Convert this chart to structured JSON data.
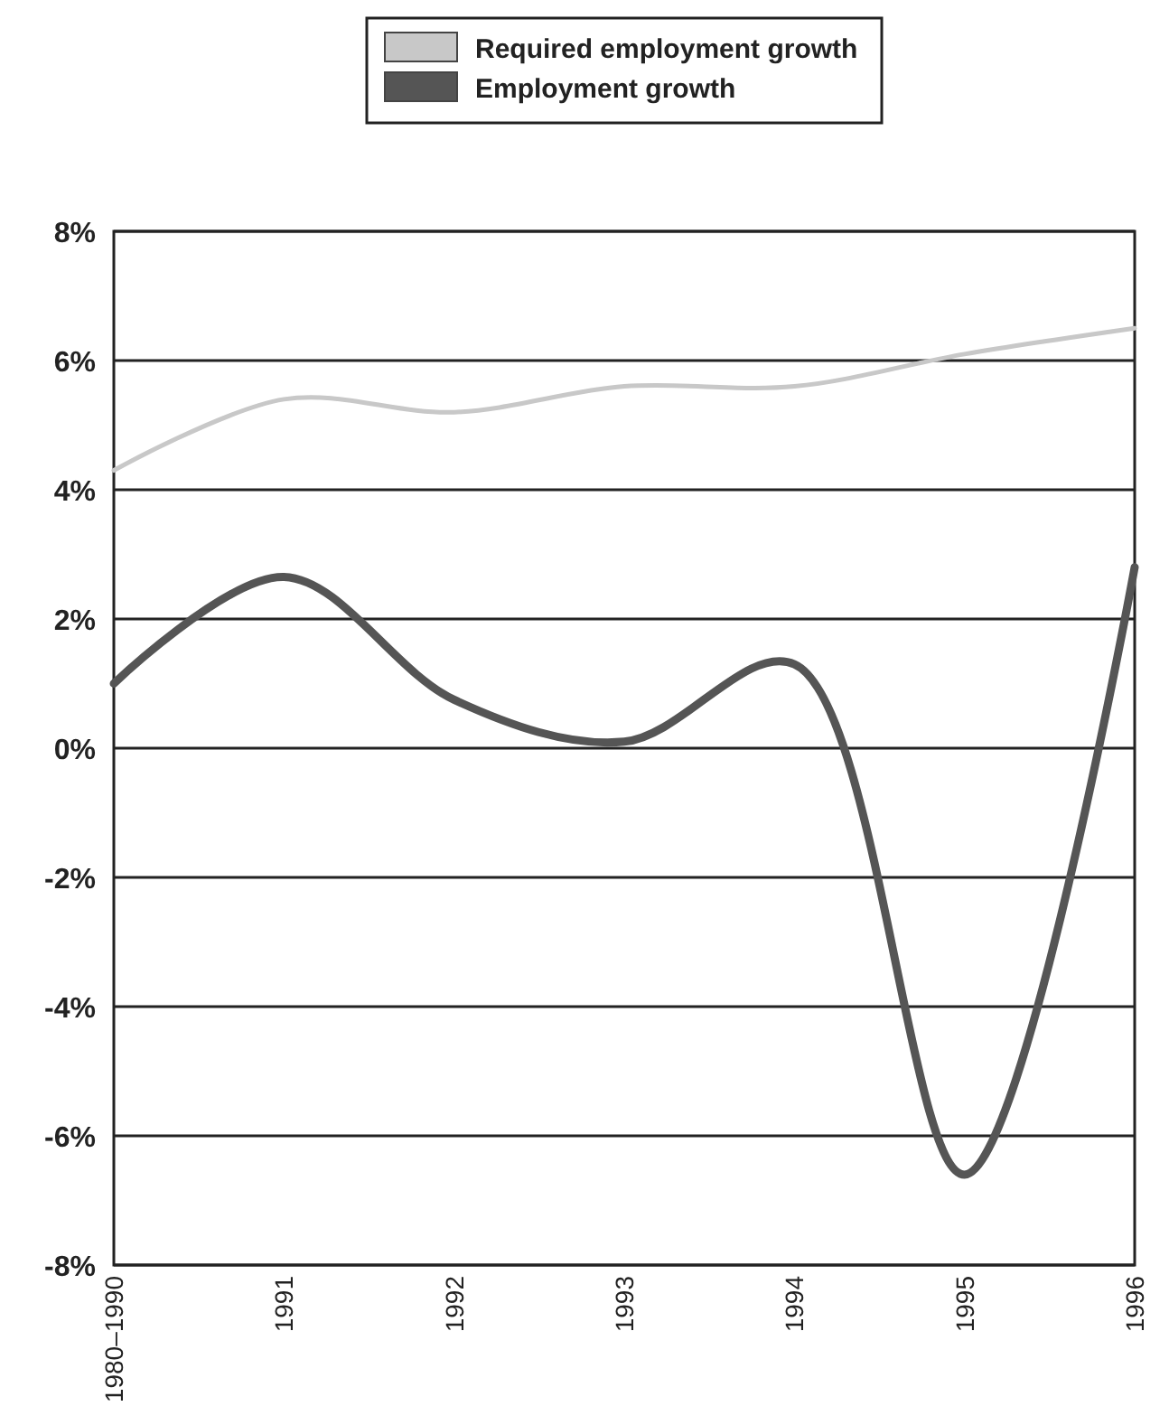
{
  "chart_data": {
    "type": "line",
    "categories": [
      "1980–1990",
      "1991",
      "1992",
      "1993",
      "1994",
      "1995",
      "1996"
    ],
    "series": [
      {
        "name": "Required employment growth",
        "color": "#c8c8c8",
        "values": [
          4.3,
          5.4,
          5.2,
          5.6,
          5.6,
          6.1,
          6.5
        ]
      },
      {
        "name": "Employment growth",
        "color": "#555555",
        "values": [
          1.0,
          2.65,
          0.75,
          0.1,
          1.3,
          -6.6,
          2.8
        ]
      }
    ],
    "ylim": [
      -8,
      8
    ],
    "yticks": [
      {
        "value": -8,
        "label": "-8%"
      },
      {
        "value": -6,
        "label": "-6%"
      },
      {
        "value": -4,
        "label": "-4%"
      },
      {
        "value": -2,
        "label": "-2%"
      },
      {
        "value": 0,
        "label": "0%"
      },
      {
        "value": 2,
        "label": "2%"
      },
      {
        "value": 4,
        "label": "4%"
      },
      {
        "value": 6,
        "label": "6%"
      },
      {
        "value": 8,
        "label": "8%"
      }
    ],
    "grid": "y",
    "legend": "top",
    "marker": "none",
    "line_style": "solid"
  }
}
